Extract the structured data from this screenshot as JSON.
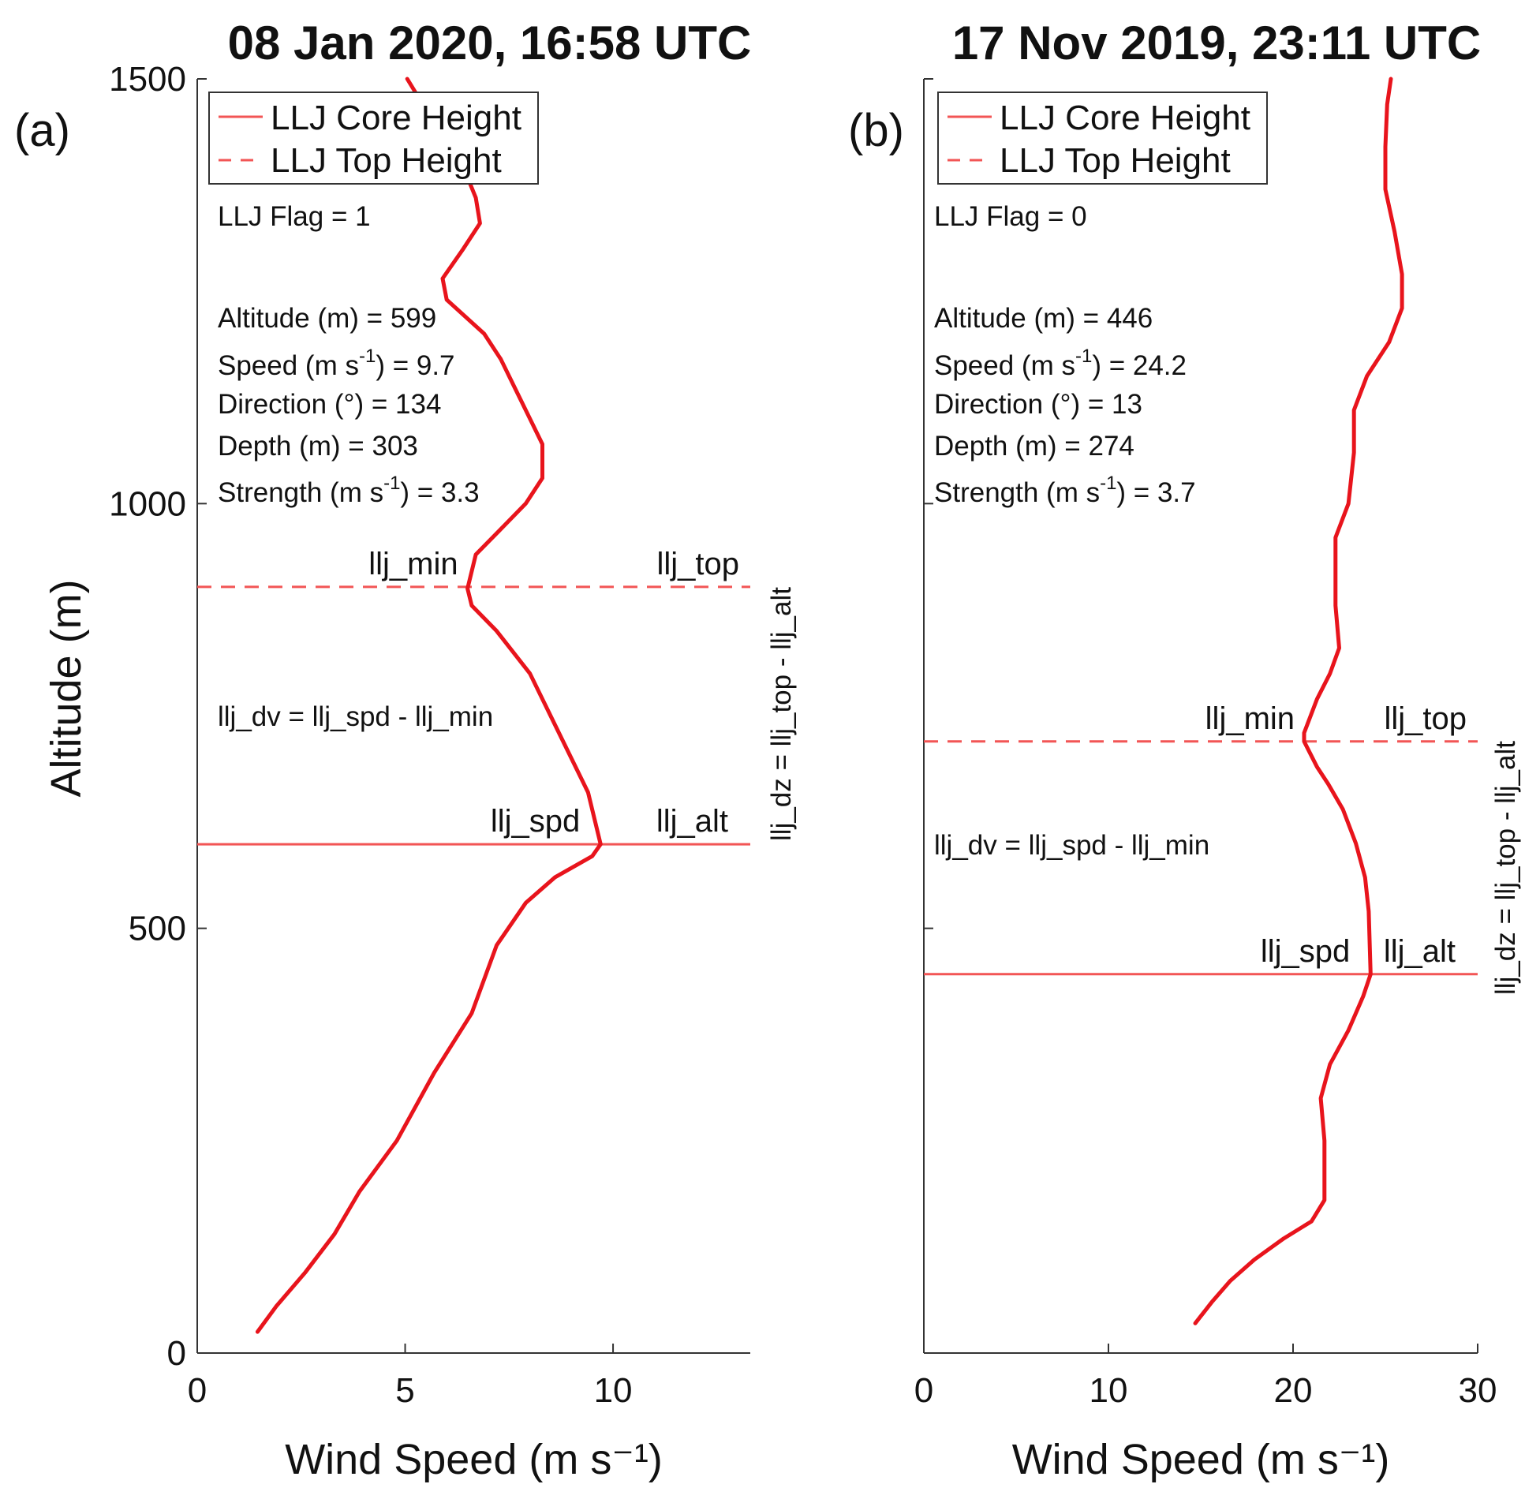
{
  "chart_data": [
    {
      "type": "line",
      "panel_label": "(a)",
      "title": "08 Jan 2020, 16:58 UTC",
      "xlabel": "Wind Speed (m s⁻¹)",
      "ylabel": "Altitude (m)",
      "xlim": [
        0,
        13.3
      ],
      "ylim": [
        0,
        1500
      ],
      "xticks": [
        0,
        5,
        10
      ],
      "yticks": [
        0,
        500,
        1000,
        1500
      ],
      "series": [
        {
          "name": "",
          "color": "#e8141c",
          "points": [
            [
              1.45,
              25
            ],
            [
              1.9,
              55
            ],
            [
              2.6,
              95
            ],
            [
              3.3,
              140
            ],
            [
              3.9,
              190
            ],
            [
              4.8,
              250
            ],
            [
              5.7,
              330
            ],
            [
              6.6,
              400
            ],
            [
              7.2,
              480
            ],
            [
              7.9,
              530
            ],
            [
              8.6,
              560
            ],
            [
              9.5,
              585
            ],
            [
              9.7,
              599
            ],
            [
              9.4,
              660
            ],
            [
              8.7,
              730
            ],
            [
              8.0,
              800
            ],
            [
              7.2,
              850
            ],
            [
              6.6,
              880
            ],
            [
              6.5,
              900
            ],
            [
              6.7,
              940
            ],
            [
              7.3,
              970
            ],
            [
              7.9,
              1000
            ],
            [
              8.3,
              1030
            ],
            [
              8.3,
              1070
            ],
            [
              8.0,
              1100
            ],
            [
              7.6,
              1140
            ],
            [
              7.3,
              1170
            ],
            [
              6.9,
              1200
            ],
            [
              6.0,
              1240
            ],
            [
              5.9,
              1265
            ],
            [
              6.4,
              1300
            ],
            [
              6.8,
              1330
            ],
            [
              6.7,
              1360
            ],
            [
              6.2,
              1420
            ],
            [
              5.7,
              1460
            ],
            [
              5.3,
              1480
            ],
            [
              5.05,
              1500
            ]
          ]
        }
      ],
      "hlines": [
        {
          "name": "LLJ Core Height",
          "y": 599,
          "style": "solid",
          "color": "#f25555"
        },
        {
          "name": "LLJ Top Height",
          "y": 902,
          "style": "dashed",
          "color": "#f25555"
        }
      ],
      "legend": {
        "position": "top-left",
        "entries": [
          "LLJ Core Height",
          "LLJ Top Height"
        ]
      },
      "annotations": {
        "flag": "LLJ Flag = 1",
        "altitude": "Altitude (m) = 599",
        "speed_prefix": "Speed (m s",
        "speed_value": ") = 9.7",
        "direction": "Direction (°) = 134",
        "depth": "Depth (m) = 303",
        "strength_prefix": "Strength (m s",
        "strength_value": ") = 3.3",
        "dv_eq": "llj_dv = llj_spd - llj_min",
        "dz_eq": "llj_dz = llj_top - llj_alt",
        "sup": "-1"
      },
      "markers": {
        "llj_min": "llj_min",
        "llj_top": "llj_top",
        "llj_spd": "llj_spd",
        "llj_alt": "llj_alt"
      }
    },
    {
      "type": "line",
      "panel_label": "(b)",
      "title": "17 Nov 2019, 23:11 UTC",
      "xlabel": "Wind Speed (m s⁻¹)",
      "ylabel": "",
      "xlim": [
        0,
        30
      ],
      "ylim": [
        0,
        1500
      ],
      "xticks": [
        0,
        10,
        20,
        30
      ],
      "yticks": [
        0,
        500,
        1000,
        1500
      ],
      "series": [
        {
          "name": "",
          "color": "#e8141c",
          "points": [
            [
              14.7,
              35
            ],
            [
              15.6,
              60
            ],
            [
              16.6,
              85
            ],
            [
              17.9,
              110
            ],
            [
              19.5,
              135
            ],
            [
              21.0,
              155
            ],
            [
              21.7,
              180
            ],
            [
              21.7,
              250
            ],
            [
              21.5,
              300
            ],
            [
              22.0,
              340
            ],
            [
              23.0,
              380
            ],
            [
              23.8,
              420
            ],
            [
              24.2,
              446
            ],
            [
              24.1,
              520
            ],
            [
              23.9,
              560
            ],
            [
              23.4,
              600
            ],
            [
              22.7,
              640
            ],
            [
              21.9,
              670
            ],
            [
              21.3,
              690
            ],
            [
              20.6,
              720
            ],
            [
              20.6,
              730
            ],
            [
              21.3,
              770
            ],
            [
              22.0,
              800
            ],
            [
              22.5,
              830
            ],
            [
              22.3,
              880
            ],
            [
              22.3,
              960
            ],
            [
              23.0,
              1000
            ],
            [
              23.3,
              1060
            ],
            [
              23.3,
              1110
            ],
            [
              24.0,
              1150
            ],
            [
              25.2,
              1190
            ],
            [
              25.9,
              1230
            ],
            [
              25.9,
              1270
            ],
            [
              25.5,
              1320
            ],
            [
              25.0,
              1370
            ],
            [
              25.0,
              1420
            ],
            [
              25.1,
              1470
            ],
            [
              25.3,
              1500
            ]
          ]
        }
      ],
      "hlines": [
        {
          "name": "LLJ Core Height",
          "y": 446,
          "style": "solid",
          "color": "#f25555"
        },
        {
          "name": "LLJ Top Height",
          "y": 720,
          "style": "dashed",
          "color": "#f25555"
        }
      ],
      "legend": {
        "position": "top-left",
        "entries": [
          "LLJ Core Height",
          "LLJ Top Height"
        ]
      },
      "annotations": {
        "flag": "LLJ Flag = 0",
        "altitude": "Altitude (m) = 446",
        "speed_prefix": "Speed (m s",
        "speed_value": ") = 24.2",
        "direction": "Direction (°) = 13",
        "depth": "Depth (m) = 274",
        "strength_prefix": "Strength (m s",
        "strength_value": ") = 3.7",
        "dv_eq": "llj_dv = llj_spd - llj_min",
        "dz_eq": "llj_dz = llj_top - llj_alt",
        "sup": "-1"
      },
      "markers": {
        "llj_min": "llj_min",
        "llj_top": "llj_top",
        "llj_spd": "llj_spd",
        "llj_alt": "llj_alt"
      }
    }
  ]
}
